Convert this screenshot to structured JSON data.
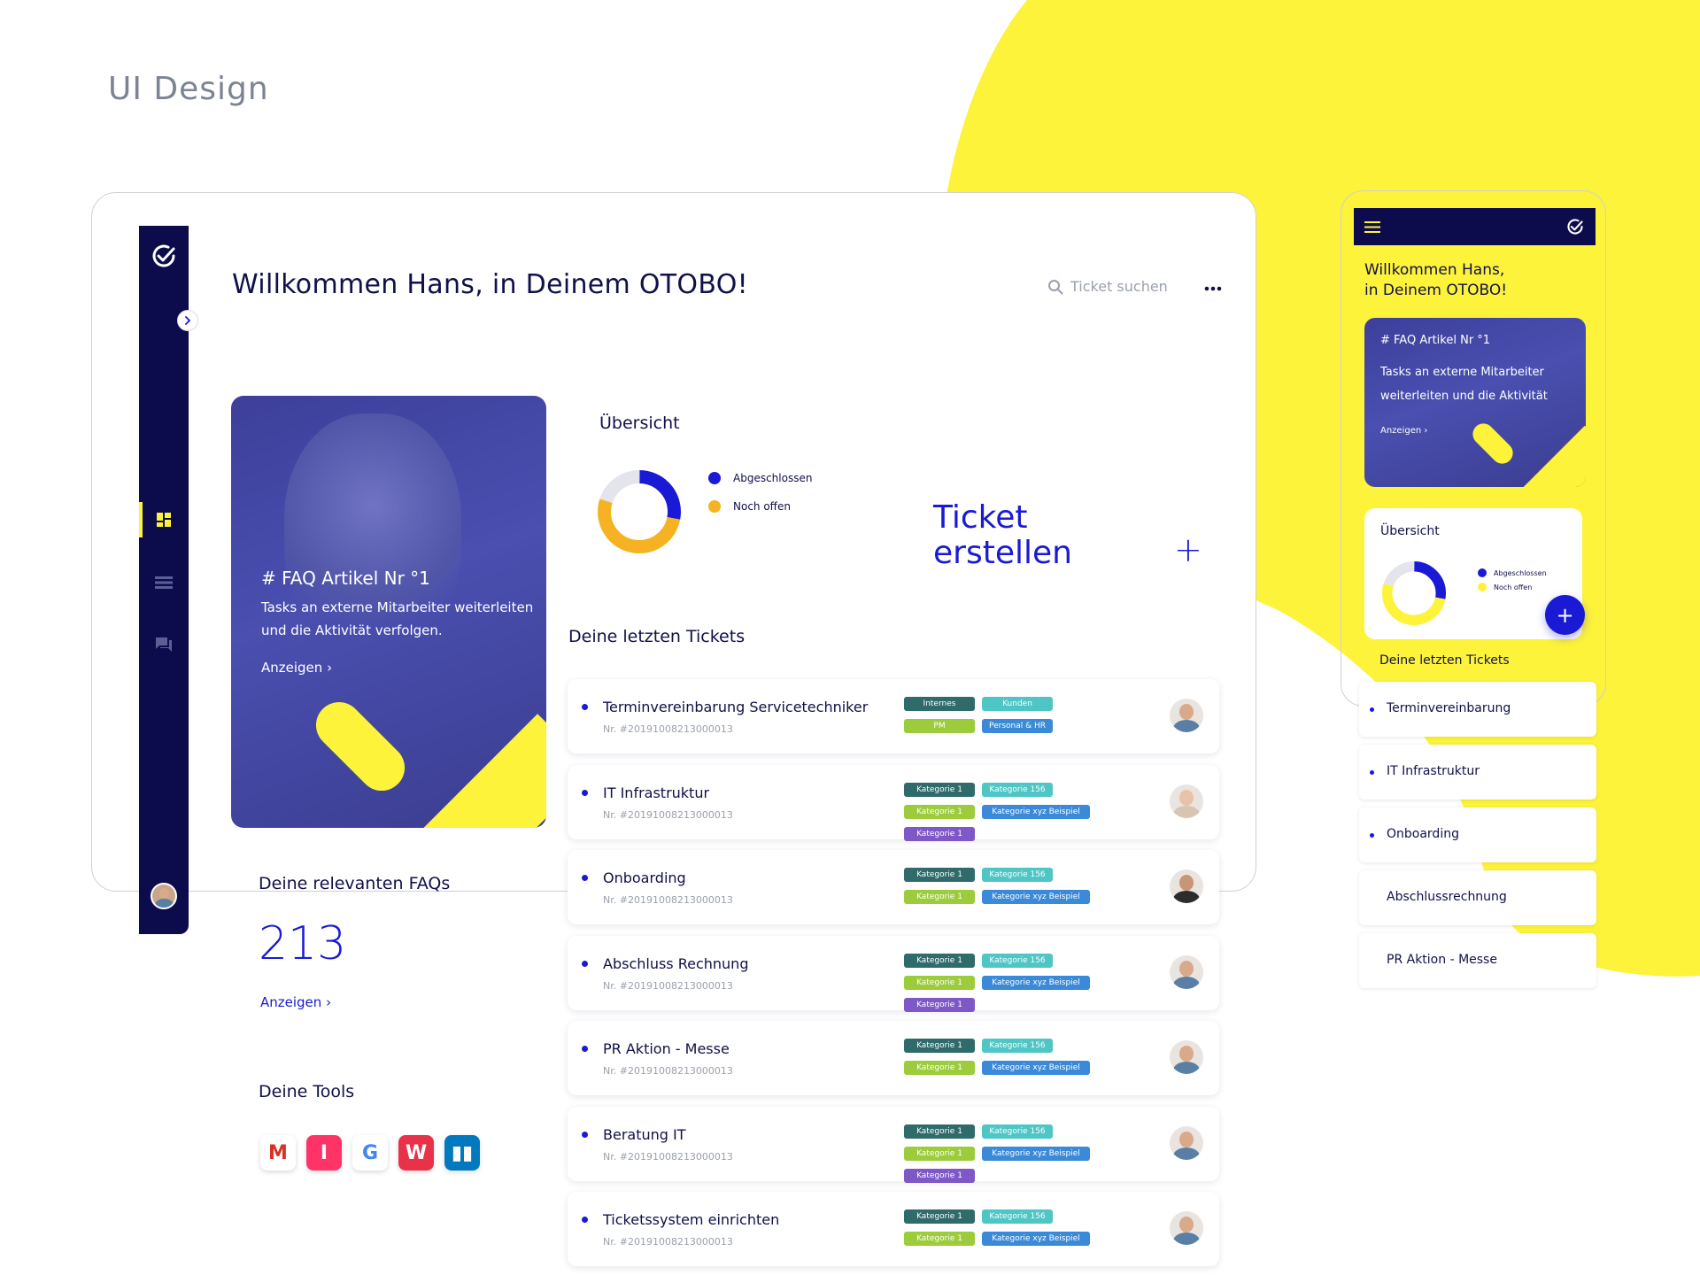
{
  "page": {
    "title": "UI Design"
  },
  "colors": {
    "navy": "#0c0c4c",
    "yellow": "#fdf33a",
    "blue": "#1a1ad6",
    "orange": "#f5b324",
    "gray": "#9aa0ad"
  },
  "desktop": {
    "welcome": "Willkommen Hans, in Deinem OTOBO!",
    "search_placeholder": "Ticket suchen",
    "more_icon": "more-horizontal-icon",
    "sidebar": {
      "logo_icon": "check-circle-icon",
      "toggle_icon": "chevron-right-icon",
      "items": [
        {
          "name": "dashboard",
          "icon": "grid-icon",
          "active": true
        },
        {
          "name": "tickets",
          "icon": "list-icon",
          "active": false
        },
        {
          "name": "chat",
          "icon": "chat-icon",
          "active": false
        }
      ]
    },
    "faq_hero": {
      "title": "# FAQ Artikel Nr °1",
      "description": "Tasks an externe Mitarbeiter weiterleiten und die Aktivität verfolgen.",
      "link": "Anzeigen ›"
    },
    "overview": {
      "title": "Übersicht",
      "legend": [
        {
          "label": "Abgeschlossen",
          "color": "#1a1ad6"
        },
        {
          "label": "Noch offen",
          "color": "#f5b324"
        }
      ],
      "create_label": "Ticket erstellen",
      "create_line1": "Ticket",
      "create_line2": "erstellen",
      "plus": "+"
    },
    "chart_data": {
      "type": "pie",
      "donut": true,
      "slices": [
        {
          "label": "Abgeschlossen",
          "value": 28,
          "color": "#1a1ad6"
        },
        {
          "label": "Noch offen",
          "value": 52,
          "color": "#f5b324"
        },
        {
          "label": "",
          "value": 20,
          "color": "#e4e4ec"
        }
      ]
    },
    "recent_tickets_heading": "Deine letzten Tickets",
    "tickets": [
      {
        "title": "Terminvereinbarung Servicetechniker",
        "nr": "Nr. #20191008213000013",
        "tags": [
          {
            "label": "Internes",
            "color": "#2f6b6b"
          },
          {
            "label": "Kunden",
            "color": "#4fc6c6"
          },
          {
            "label": "PM",
            "color": "#9ccc3c"
          },
          {
            "label": "Personal & HR",
            "color": "#3b8ad9"
          }
        ],
        "avatar": {
          "skin": "#d9a98a",
          "shirt": "#5a7fa5"
        }
      },
      {
        "title": "IT Infrastruktur",
        "nr": "Nr. #20191008213000013",
        "tags": [
          {
            "label": "Kategorie 1",
            "color": "#2f6b6b"
          },
          {
            "label": "Kategorie 156",
            "color": "#4fc6c6"
          },
          {
            "label": "Kategorie 1",
            "color": "#9ccc3c"
          },
          {
            "label": "Kategorie xyz Beispiel",
            "color": "#3b8ad9"
          },
          {
            "label": "Kategorie 1",
            "color": "#7f58c8"
          }
        ],
        "avatar": {
          "skin": "#e8c3a8",
          "shirt": "#d9c4b0"
        }
      },
      {
        "title": "Onboarding",
        "nr": "Nr. #20191008213000013",
        "tags": [
          {
            "label": "Kategorie 1",
            "color": "#2f6b6b"
          },
          {
            "label": "Kategorie 156",
            "color": "#4fc6c6"
          },
          {
            "label": "Kategorie 1",
            "color": "#9ccc3c"
          },
          {
            "label": "Kategorie xyz Beispiel",
            "color": "#3b8ad9"
          }
        ],
        "avatar": {
          "skin": "#c79578",
          "shirt": "#2c2c2c"
        }
      },
      {
        "title": "Abschluss Rechnung",
        "nr": "Nr. #20191008213000013",
        "tags": [
          {
            "label": "Kategorie 1",
            "color": "#2f6b6b"
          },
          {
            "label": "Kategorie 156",
            "color": "#4fc6c6"
          },
          {
            "label": "Kategorie 1",
            "color": "#9ccc3c"
          },
          {
            "label": "Kategorie xyz Beispiel",
            "color": "#3b8ad9"
          },
          {
            "label": "Kategorie 1",
            "color": "#7f58c8"
          }
        ],
        "avatar": {
          "skin": "#d9a98a",
          "shirt": "#5a7fa5"
        }
      },
      {
        "title": "PR Aktion - Messe",
        "nr": "Nr. #20191008213000013",
        "tags": [
          {
            "label": "Kategorie 1",
            "color": "#2f6b6b"
          },
          {
            "label": "Kategorie 156",
            "color": "#4fc6c6"
          },
          {
            "label": "Kategorie 1",
            "color": "#9ccc3c"
          },
          {
            "label": "Kategorie xyz Beispiel",
            "color": "#3b8ad9"
          }
        ],
        "avatar": {
          "skin": "#d9a98a",
          "shirt": "#5a7fa5"
        }
      },
      {
        "title": "Beratung IT",
        "nr": "Nr. #20191008213000013",
        "tags": [
          {
            "label": "Kategorie 1",
            "color": "#2f6b6b"
          },
          {
            "label": "Kategorie 156",
            "color": "#4fc6c6"
          },
          {
            "label": "Kategorie 1",
            "color": "#9ccc3c"
          },
          {
            "label": "Kategorie xyz Beispiel",
            "color": "#3b8ad9"
          },
          {
            "label": "Kategorie 1",
            "color": "#7f58c8"
          }
        ],
        "avatar": {
          "skin": "#d9a98a",
          "shirt": "#5a7fa5"
        }
      },
      {
        "title": "Ticketssystem einrichten",
        "nr": "Nr. #20191008213000013",
        "tags": [
          {
            "label": "Kategorie 1",
            "color": "#2f6b6b"
          },
          {
            "label": "Kategorie 156",
            "color": "#4fc6c6"
          },
          {
            "label": "Kategorie 1",
            "color": "#9ccc3c"
          },
          {
            "label": "Kategorie xyz Beispiel",
            "color": "#3b8ad9"
          }
        ],
        "avatar": {
          "skin": "#d9a98a",
          "shirt": "#5a7fa5"
        }
      }
    ],
    "faqs": {
      "heading": "Deine relevanten FAQs",
      "count": "213",
      "link": "Anzeigen ›"
    },
    "tools": {
      "heading": "Deine Tools",
      "items": [
        {
          "name": "gmail",
          "glyph": "M",
          "color": "#d93025",
          "bg": "#ffffff"
        },
        {
          "name": "invision",
          "glyph": "I",
          "color": "#ffffff",
          "bg": "#ff3366"
        },
        {
          "name": "google",
          "glyph": "G",
          "color": "#4285f4",
          "bg": "#ffffff"
        },
        {
          "name": "whiteboard",
          "glyph": "W",
          "color": "#ffffff",
          "bg": "#e8324a"
        },
        {
          "name": "trello",
          "glyph": "▮▮",
          "color": "#ffffff",
          "bg": "#0079bf"
        }
      ]
    }
  },
  "mobile": {
    "menu_icon": "hamburger-icon",
    "logo_icon": "check-circle-icon",
    "welcome_line1": "Willkommen Hans,",
    "welcome_line2": "in Deinem OTOBO!",
    "faq_hero": {
      "title": "# FAQ Artikel Nr °1",
      "description": "Tasks an externe Mitarbeiter weiterleiten und die Aktivität",
      "link": "Anzeigen ›"
    },
    "overview": {
      "title": "Übersicht",
      "legend": [
        {
          "label": "Abgeschlossen",
          "color": "#1a1ad6"
        },
        {
          "label": "Noch offen",
          "color": "#fdf33a"
        }
      ]
    },
    "fab": "+",
    "recent_tickets_heading": "Deine letzten Tickets",
    "tickets": [
      {
        "title": "Terminvereinbarung",
        "dot": true
      },
      {
        "title": "IT Infrastruktur",
        "dot": true
      },
      {
        "title": "Onboarding",
        "dot": true
      },
      {
        "title": "Abschlussrechnung",
        "dot": false
      },
      {
        "title": "PR Aktion - Messe",
        "dot": false
      }
    ]
  }
}
